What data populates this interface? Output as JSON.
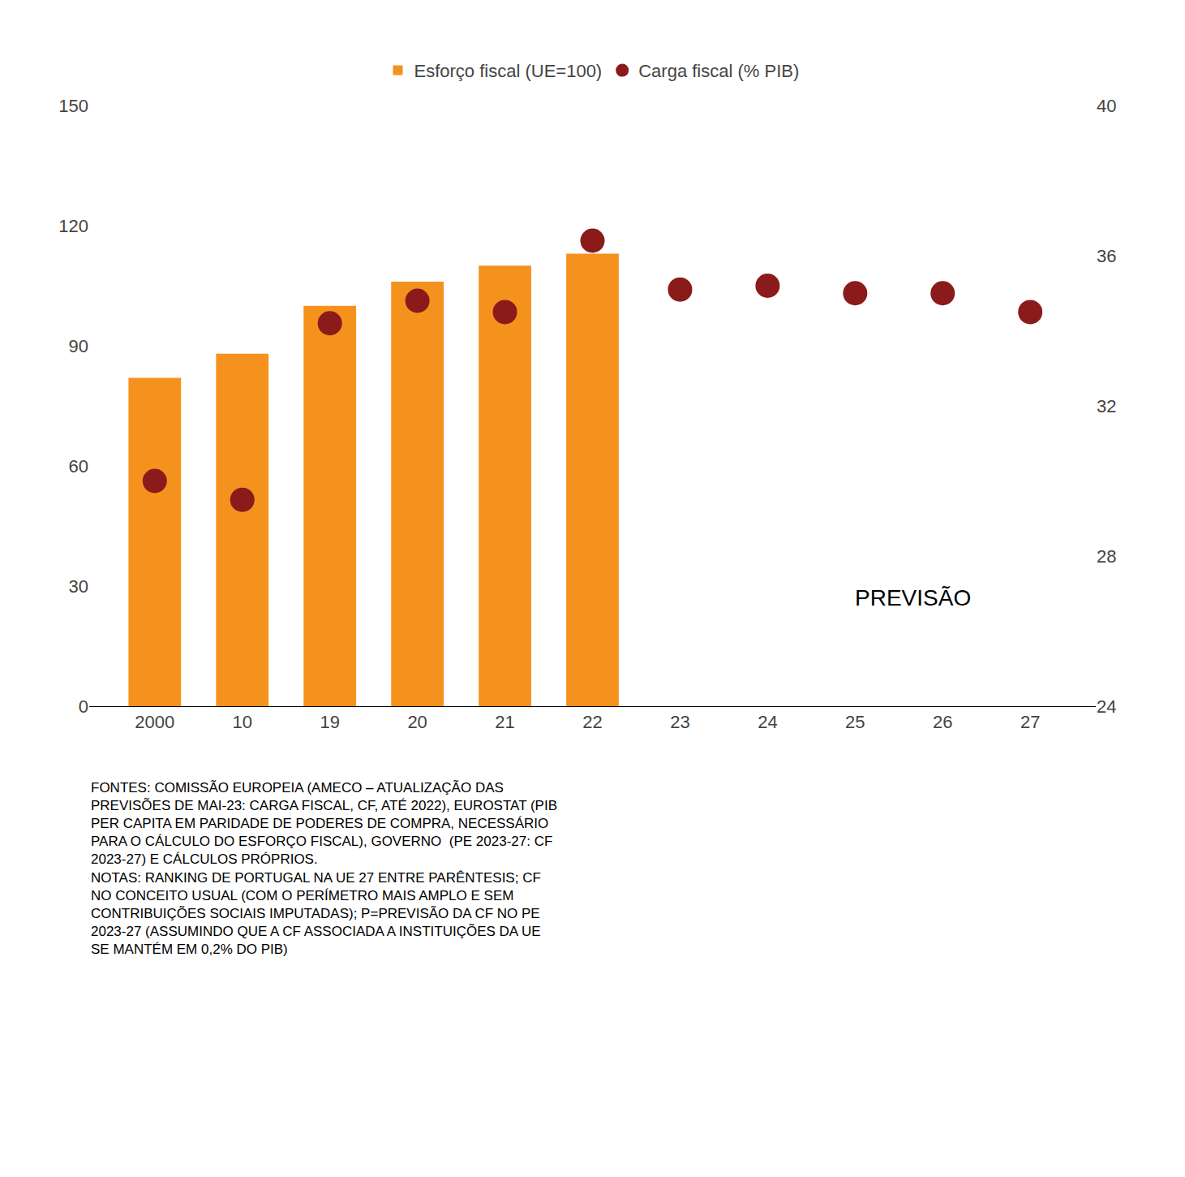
{
  "chart_data": {
    "type": "bar",
    "categories": [
      "2000",
      "10",
      "19",
      "20",
      "21",
      "22",
      "23",
      "24",
      "25",
      "26",
      "27"
    ],
    "series": [
      {
        "name": "Esforço fiscal (UE=100)",
        "type": "bar",
        "color": "#F5921E",
        "values": [
          82,
          88,
          100,
          106,
          110,
          113,
          null,
          null,
          null,
          null,
          null
        ]
      },
      {
        "name": "Carga fiscal (% PIB)",
        "type": "scatter",
        "marker": "circle",
        "axis": "y2",
        "color": "#8B1A1A",
        "values": [
          30.0,
          29.5,
          34.2,
          34.8,
          34.5,
          36.4,
          35.1,
          35.2,
          35.0,
          35.0,
          34.5
        ]
      }
    ],
    "ylim": [
      0,
      150
    ],
    "yticks": [
      0,
      30,
      60,
      90,
      120,
      150
    ],
    "y2lim": [
      24,
      40
    ],
    "y2ticks": [
      24,
      28,
      32,
      36,
      40
    ],
    "grid": false,
    "legend": "top",
    "annotations": [
      "PREVISÃO",
      "FONTES: COMISSÃO EUROPEIA (AMECO – ATUALIZAÇÃO DAS\nPREVISÕES DE MAI-23: CARGA FISCAL, CF, ATÉ 2022), EUROSTAT (PIB\nPER CAPITA EM PARIDADE DE PODERES DE COMPRA, NECESSÁRIO\nPARA O CÁLCULO DO ESFORÇO FISCAL), GOVERNO  (PE 2023-27: CF\n2023-27) E CÁLCULOS PRÓPRIOS.\nNOTAS: RANKING DE PORTUGAL NA UE 27 ENTRE PARÊNTESIS; CF\nNO CONCEITO USUAL (COM O PERÍMETRO MAIS AMPLO E SEM\nCONTRIBUIÇÕES SOCIAIS IMPUTADAS); P=PREVISÃO DA CF NO PE\n2023-27 (ASSUMINDO QUE A CF ASSOCIADA A INSTITUIÇÕES DA UE\nSE MANTÉM EM 0,2% DO PIB)"
    ]
  }
}
